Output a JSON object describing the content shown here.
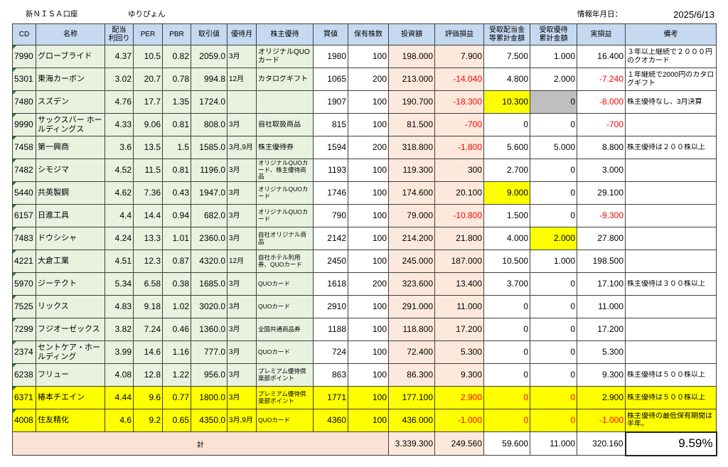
{
  "sheet": {
    "account": "新ＮＩＳＡ口座",
    "owner": "ゆりぴょん",
    "date_label": "情報年月日：",
    "date": "2025/6/13"
  },
  "colors": {
    "header_fill": "#c5d9f1",
    "info_fill": "#e9f1df",
    "investment_fill": "#fde9dc",
    "total_fill": "#fbe2d5",
    "highlight_fill": "#ffff00",
    "muted_fill": "#bfbfbf",
    "negative_text": "#ff0000"
  },
  "headers": {
    "cd": "CD",
    "name": "名称",
    "yield": "配当\n利回り",
    "per": "PER",
    "pbr": "PBR",
    "price": "取引値",
    "month": "優待月",
    "benefit": "株主優待",
    "cost": "買値",
    "shares": "保有株数",
    "investment": "投資額",
    "unrealized": "評価損益",
    "dividends": "受取配当金\n等累計金額",
    "benefits": "受取優待\n累計金額",
    "pnl": "実損益",
    "note": "備考"
  },
  "rows": [
    {
      "cd": "7990",
      "name": "グローブライド",
      "yield": "4.37",
      "per": "10.5",
      "pbr": "0.82",
      "price": "2059.0",
      "month": "3月",
      "benefit": "オリジナルQUOカード",
      "cost": "1980",
      "shares": "100",
      "investment": "198.000",
      "unrealized": "7.900",
      "dividends": "7.500",
      "benefits": "1.000",
      "pnl": "16.400",
      "note": "３年以上継続で２０００円のクオカード"
    },
    {
      "cd": "5301",
      "name": "東海カーボン",
      "yield": "3.02",
      "per": "20.7",
      "pbr": "0.78",
      "price": "994.8",
      "month": "12月",
      "benefit": "カタログギフト",
      "cost": "1065",
      "shares": "200",
      "investment": "213.000",
      "unrealized": "-14.040",
      "dividends": "4.800",
      "benefits": "2.000",
      "pnl": "-7.240",
      "note": "１年継続で2000円のカタログギフト",
      "text_colors": {
        "unrealized": "#ff0000",
        "pnl": "#ff0000"
      }
    },
    {
      "cd": "7480",
      "name": "スズデン",
      "yield": "4.76",
      "per": "17.7",
      "pbr": "1.35",
      "price": "1724.0",
      "cost": "1907",
      "shares": "100",
      "investment": "190.700",
      "unrealized": "-18.300",
      "dividends": "10.300",
      "benefits": "0",
      "pnl": "-8.000",
      "note": "株主優待なし、3月決算",
      "fills": {
        "dividends": "#ffff00",
        "benefits": "#bfbfbf"
      },
      "text_colors": {
        "unrealized": "#ff0000",
        "pnl": "#ff0000"
      }
    },
    {
      "cd": "9990",
      "name": "サックスバー ホールディングス",
      "yield": "4.33",
      "per": "9.06",
      "pbr": "0.81",
      "price": "808.0",
      "month": "3月",
      "benefit": "自社取扱商品",
      "cost": "815",
      "shares": "100",
      "investment": "81.500",
      "unrealized": "-700",
      "dividends": "0",
      "benefits": "0",
      "pnl": "-700",
      "text_colors": {
        "unrealized": "#ff0000",
        "pnl": "#ff0000"
      }
    },
    {
      "cd": "7458",
      "name": "第一興商",
      "yield": "3.6",
      "per": "13.5",
      "pbr": "1.5",
      "price": "1585.0",
      "month": "3月,9月",
      "benefit": "株主優待券",
      "cost": "1594",
      "shares": "200",
      "investment": "318.800",
      "unrealized": "-1.800",
      "dividends": "5.600",
      "benefits": "5.000",
      "pnl": "8.800",
      "note": "株主優待は２００株以上",
      "text_colors": {
        "unrealized": "#ff0000"
      }
    },
    {
      "cd": "7482",
      "name": "シモジマ",
      "yield": "4.52",
      "per": "11.5",
      "pbr": "0.81",
      "price": "1196.0",
      "month": "3月",
      "benefit": "オリジナルQUOカード、株主優待商品",
      "cost": "1193",
      "shares": "100",
      "investment": "119.300",
      "unrealized": "300",
      "dividends": "2.700",
      "benefits": "0",
      "pnl": "3.000"
    },
    {
      "cd": "5440",
      "name": "共英製鋼",
      "yield": "4.62",
      "per": "7.36",
      "pbr": "0.43",
      "price": "1947.0",
      "month": "3月",
      "benefit": "オリジナルQUOカード",
      "cost": "1746",
      "shares": "100",
      "investment": "174.600",
      "unrealized": "20.100",
      "dividends": "9.000",
      "benefits": "0",
      "pnl": "29.100",
      "fills": {
        "dividends": "#ffff00"
      }
    },
    {
      "cd": "6157",
      "name": "日進工具",
      "yield": "4.4",
      "per": "14.4",
      "pbr": "0.94",
      "price": "682.0",
      "month": "3月",
      "benefit": "オリジナルQUOカード",
      "cost": "790",
      "shares": "100",
      "investment": "79.000",
      "unrealized": "-10.800",
      "dividends": "1.500",
      "benefits": "0",
      "pnl": "-9.300",
      "text_colors": {
        "unrealized": "#ff0000",
        "pnl": "#ff0000"
      }
    },
    {
      "cd": "7483",
      "name": "ドウシシャ",
      "yield": "4.24",
      "per": "13.3",
      "pbr": "1.01",
      "price": "2360.0",
      "month": "3月",
      "benefit": "自社オリジナル商品",
      "cost": "2142",
      "shares": "100",
      "investment": "214.200",
      "unrealized": "21.800",
      "dividends": "4.000",
      "benefits": "2.000",
      "pnl": "27.800",
      "fills": {
        "benefits": "#ffff00"
      }
    },
    {
      "cd": "4221",
      "name": "大倉工業",
      "yield": "4.51",
      "per": "12.3",
      "pbr": "0.87",
      "price": "4320.0",
      "month": "12月",
      "benefit": "自社ホテル利用券、QUOカード",
      "cost": "2450",
      "shares": "100",
      "investment": "245.000",
      "unrealized": "187.000",
      "dividends": "10.500",
      "benefits": "1.000",
      "pnl": "198.500"
    },
    {
      "cd": "5970",
      "name": "ジーテクト",
      "yield": "5.34",
      "per": "6.58",
      "pbr": "0.38",
      "price": "1685.0",
      "month": "3月",
      "benefit": "QUOカード",
      "cost": "1618",
      "shares": "200",
      "investment": "323.600",
      "unrealized": "13.400",
      "dividends": "3.700",
      "benefits": "0",
      "pnl": "17.100",
      "note": "株主優待は３００株以上"
    },
    {
      "cd": "7525",
      "name": "リックス",
      "yield": "4.83",
      "per": "9.18",
      "pbr": "1.02",
      "price": "3020.0",
      "month": "3月",
      "benefit": "QUOカード",
      "cost": "2910",
      "shares": "100",
      "investment": "291.000",
      "unrealized": "11.000",
      "dividends": "0",
      "benefits": "0",
      "pnl": "11.000"
    },
    {
      "cd": "7299",
      "name": "フジオーゼックス",
      "yield": "3.82",
      "per": "7.24",
      "pbr": "0.46",
      "price": "1360.0",
      "month": "3月",
      "benefit": "全国共通商品券",
      "cost": "1188",
      "shares": "100",
      "investment": "118.800",
      "unrealized": "17.200",
      "dividends": "0",
      "benefits": "0",
      "pnl": "17.200"
    },
    {
      "cd": "2374",
      "name": "セントケア・ホールディング",
      "yield": "3.99",
      "per": "14.6",
      "pbr": "1.16",
      "price": "777.0",
      "month": "3月",
      "benefit": "QUOカード",
      "cost": "724",
      "shares": "100",
      "investment": "72.400",
      "unrealized": "5.300",
      "dividends": "0",
      "benefits": "0",
      "pnl": "5.300"
    },
    {
      "cd": "6238",
      "name": "フリュー",
      "yield": "4.08",
      "per": "12.8",
      "pbr": "1.22",
      "price": "956.0",
      "month": "3月",
      "benefit": "プレミアム優待倶楽部ポイント",
      "cost": "863",
      "shares": "100",
      "investment": "86.300",
      "unrealized": "9.300",
      "dividends": "0",
      "benefits": "0",
      "pnl": "9.300",
      "note": "株主優待は５００株以上"
    },
    {
      "cd": "6371",
      "name": "椿本チエイン",
      "yield": "4.44",
      "per": "9.6",
      "pbr": "0.77",
      "price": "1800.0",
      "month": "3月",
      "benefit": "プレミアム優待倶楽部ポイント",
      "cost": "1771",
      "shares": "100",
      "investment": "177.100",
      "unrealized": "2.900",
      "dividends": "0",
      "benefits": "0",
      "pnl": "2.900",
      "note": "株主優待は５００株以上",
      "row_fill": "#ffff00",
      "text_colors": {
        "unrealized": "#ff0000",
        "dividends": "#ff0000",
        "benefits": "#ff0000"
      }
    },
    {
      "cd": "4008",
      "name": "住友精化",
      "yield": "4.6",
      "per": "9.2",
      "pbr": "0.65",
      "price": "4350.0",
      "month": "3月,9月",
      "benefit": "QUOカード",
      "cost": "4360",
      "shares": "100",
      "investment": "436.000",
      "unrealized": "-1.000",
      "dividends": "0",
      "benefits": "0",
      "pnl": "-1.000",
      "note": "株主優待の最低保有期間は半年。",
      "row_fill": "#ffff00",
      "text_colors": {
        "unrealized": "#ff0000",
        "dividends": "#ff0000",
        "benefits": "#ff0000",
        "pnl": "#ff0000"
      }
    }
  ],
  "total": {
    "label": "計",
    "investment": "3.339.300",
    "unrealized": "249.560",
    "dividends": "59.600",
    "benefits": "11.000",
    "pnl": "320.160",
    "ratio": "9.59%"
  }
}
